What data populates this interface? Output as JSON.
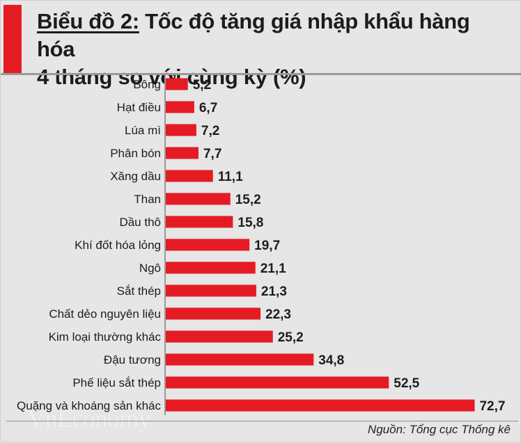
{
  "header": {
    "title_label": "Biểu đồ 2:",
    "title_line1_rest": " Tốc độ tăng giá nhập khẩu hàng hóa",
    "title_line2": "4 tháng so với cùng kỳ (%)"
  },
  "colors": {
    "accent": "#e51b24",
    "bar": "#e51b24",
    "background": "#e6e6e6",
    "text": "#1c1c1c"
  },
  "watermark": "VnEconomy",
  "source": "Nguồn: Tổng cục Thống kê",
  "chart_data": {
    "type": "bar",
    "orientation": "horizontal",
    "categories": [
      "Bông",
      "Hạt điều",
      "Lúa mì",
      "Phân bón",
      "Xăng dầu",
      "Than",
      "Dầu thô",
      "Khí đốt hóa lỏng",
      "Ngô",
      "Sắt thép",
      "Chất dẻo nguyên liệu",
      "Kim loại thường khác",
      "Đậu tương",
      "Phế liệu sắt thép",
      "Quặng và khoáng sản khác"
    ],
    "values": [
      5.2,
      6.7,
      7.2,
      7.7,
      11.1,
      15.2,
      15.8,
      19.7,
      21.1,
      21.3,
      22.3,
      25.2,
      34.8,
      52.5,
      72.7
    ],
    "value_labels": [
      "5,2",
      "6,7",
      "7,2",
      "7,7",
      "11,1",
      "15,2",
      "15,8",
      "19,7",
      "21,1",
      "21,3",
      "22,3",
      "25,2",
      "34,8",
      "52,5",
      "72,7"
    ],
    "title": "Biểu đồ 2: Tốc độ tăng giá nhập khẩu hàng hóa 4 tháng so với cùng kỳ (%)",
    "xlabel": "",
    "ylabel": "",
    "xlim": [
      0,
      80
    ],
    "grid": false
  }
}
